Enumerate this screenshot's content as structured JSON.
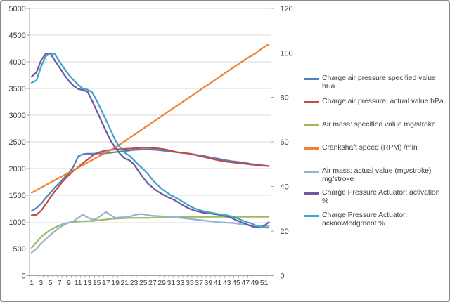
{
  "chart_data": {
    "type": "line",
    "title": "",
    "grid": true,
    "legend_position": "right",
    "x_categories": [
      1,
      2,
      3,
      4,
      5,
      6,
      7,
      8,
      9,
      10,
      11,
      12,
      13,
      14,
      15,
      16,
      17,
      18,
      19,
      20,
      21,
      22,
      23,
      24,
      25,
      26,
      27,
      28,
      29,
      30,
      31,
      32,
      33,
      34,
      35,
      36,
      37,
      38,
      39,
      40,
      41,
      42,
      43,
      44,
      45,
      46,
      47,
      48,
      49,
      50,
      51,
      52
    ],
    "x_axis": {
      "tick_labels": [
        "1",
        "3",
        "5",
        "7",
        "9",
        "11",
        "13",
        "15",
        "17",
        "19",
        "21",
        "23",
        "25",
        "27",
        "29",
        "31",
        "33",
        "35",
        "37",
        "39",
        "41",
        "43",
        "45",
        "47",
        "49",
        "51"
      ]
    },
    "left_axis": {
      "min": 0,
      "max": 5000,
      "step": 500,
      "tick_labels": [
        "0",
        "500",
        "1000",
        "1500",
        "2000",
        "2500",
        "3000",
        "3500",
        "4000",
        "4500",
        "5000"
      ]
    },
    "right_axis": {
      "min": 0,
      "max": 120,
      "step": 20,
      "tick_labels": [
        "0",
        "20",
        "40",
        "60",
        "80",
        "100",
        "120"
      ]
    },
    "series": [
      {
        "name": "Charge air pressure specified value",
        "slug": "charge-air-pressure-specified",
        "unit": "hPa",
        "legend_label": "Charge air pressure specified value  hPa",
        "axis": "left",
        "color": "#4F81BD",
        "values": [
          1210,
          1260,
          1340,
          1450,
          1550,
          1650,
          1740,
          1830,
          1920,
          2040,
          2230,
          2270,
          2280,
          2280,
          2285,
          2285,
          2290,
          2300,
          2310,
          2320,
          2330,
          2340,
          2350,
          2355,
          2360,
          2360,
          2355,
          2350,
          2340,
          2330,
          2320,
          2310,
          2300,
          2290,
          2280,
          2265,
          2250,
          2240,
          2220,
          2200,
          2190,
          2170,
          2155,
          2140,
          2130,
          2120,
          2110,
          2090,
          2080,
          2070,
          2060,
          2050
        ]
      },
      {
        "name": "Charge air pressure: actual value",
        "slug": "charge-air-pressure-actual",
        "unit": "hPa",
        "legend_label": "Charge air pressure: actual value  hPa",
        "axis": "left",
        "color": "#BE4B48",
        "values": [
          1130,
          1135,
          1210,
          1330,
          1460,
          1580,
          1690,
          1790,
          1880,
          1960,
          2030,
          2100,
          2170,
          2240,
          2290,
          2320,
          2340,
          2350,
          2360,
          2365,
          2370,
          2375,
          2380,
          2385,
          2390,
          2390,
          2385,
          2380,
          2370,
          2355,
          2335,
          2315,
          2300,
          2290,
          2280,
          2260,
          2240,
          2220,
          2200,
          2180,
          2160,
          2145,
          2130,
          2120,
          2110,
          2100,
          2090,
          2080,
          2070,
          2060,
          2055,
          2050
        ]
      },
      {
        "name": "Air mass: specified value",
        "slug": "air-mass-specified",
        "unit": "mg/stroke",
        "legend_label": "Air mass: specified value  mg/stroke",
        "axis": "left",
        "color": "#9BBB59",
        "values": [
          520,
          620,
          720,
          790,
          850,
          900,
          940,
          970,
          990,
          1005,
          1010,
          1015,
          1020,
          1020,
          1030,
          1040,
          1050,
          1060,
          1065,
          1070,
          1075,
          1080,
          1080,
          1080,
          1080,
          1080,
          1085,
          1085,
          1090,
          1090,
          1090,
          1090,
          1095,
          1095,
          1100,
          1100,
          1100,
          1100,
          1100,
          1100,
          1100,
          1100,
          1100,
          1100,
          1100,
          1100,
          1100,
          1100,
          1100,
          1100,
          1100,
          1100
        ]
      },
      {
        "name": "Crankshaft speed (RPM)",
        "slug": "crankshaft-speed",
        "unit": "/min",
        "legend_label": "Crankshaft speed (RPM)  /min",
        "axis": "left",
        "color": "#EE8336",
        "values": [
          1550,
          1597,
          1644,
          1691,
          1738,
          1785,
          1832,
          1879,
          1926,
          1973,
          2020,
          2067,
          2114,
          2161,
          2208,
          2255,
          2302,
          2349,
          2396,
          2455,
          2514,
          2573,
          2632,
          2691,
          2750,
          2809,
          2868,
          2927,
          2986,
          3045,
          3104,
          3163,
          3222,
          3281,
          3340,
          3399,
          3458,
          3517,
          3576,
          3635,
          3694,
          3753,
          3812,
          3871,
          3930,
          3989,
          4048,
          4100,
          4150,
          4215,
          4275,
          4330
        ]
      },
      {
        "name": "Air mass: actual value (mg/stroke)",
        "slug": "air-mass-actual",
        "unit": "mg/stroke",
        "legend_label": "Air mass: actual value (mg/stroke)\nmg/stroke",
        "axis": "left",
        "color": "#95B3D7",
        "values": [
          430,
          500,
          600,
          680,
          760,
          830,
          900,
          950,
          990,
          1020,
          1080,
          1140,
          1090,
          1050,
          1060,
          1130,
          1190,
          1130,
          1080,
          1090,
          1090,
          1100,
          1130,
          1150,
          1150,
          1130,
          1120,
          1115,
          1110,
          1105,
          1100,
          1090,
          1080,
          1070,
          1060,
          1050,
          1040,
          1030,
          1020,
          1010,
          1000,
          995,
          990,
          985,
          975,
          960,
          950,
          940,
          930,
          925,
          920,
          930
        ]
      },
      {
        "name": "Charge Pressure Actuator: activation",
        "slug": "actuator-activation",
        "unit": "%",
        "legend_label": "Charge Pressure Actuator: activation  %",
        "axis": "right",
        "color": "#71589E",
        "values": [
          89.3,
          91.2,
          96.5,
          99.6,
          99.8,
          96.5,
          93.4,
          90.2,
          87.4,
          85.2,
          83.8,
          83.3,
          82.6,
          78.5,
          73.9,
          69.4,
          64.8,
          60.5,
          57.4,
          54.7,
          52.6,
          51.8,
          49.9,
          46.8,
          43.9,
          41.3,
          39.6,
          37.9,
          36.7,
          35.5,
          34.6,
          33.6,
          32.2,
          31,
          30,
          29.2,
          28.7,
          28.2,
          28,
          27.7,
          27.4,
          27,
          26.6,
          25.9,
          24.8,
          24,
          23.2,
          22.4,
          21.7,
          21.5,
          22.3,
          24
        ]
      },
      {
        "name": "Charge Pressure Actuator: acknowledgment",
        "slug": "actuator-acknowledgment",
        "unit": "%",
        "legend_label": "Charge Pressure Actuator:\nacknowledgment  %",
        "axis": "right",
        "color": "#3BA7C4",
        "values": [
          86.6,
          87.6,
          93.6,
          98.4,
          99.8,
          99.4,
          96,
          93.1,
          90.2,
          87.8,
          85.7,
          84,
          83.5,
          82.3,
          78.5,
          74.2,
          69.8,
          65.3,
          60.7,
          57.6,
          55.2,
          53.8,
          51.8,
          49.7,
          47.8,
          45.6,
          43,
          40.8,
          38.9,
          37.4,
          36,
          35,
          33.8,
          32.4,
          31.2,
          30.2,
          29.5,
          28.9,
          28.4,
          28.1,
          27.7,
          27.4,
          27.1,
          26.6,
          25.9,
          25,
          24.2,
          23.6,
          22.7,
          22,
          21.6,
          21.5
        ]
      }
    ]
  },
  "legend": {
    "item_tops": [
      104,
      137,
      170,
      203,
      236,
      267,
      299
    ]
  },
  "colors": {
    "grid": "#d9d9d9",
    "axis": "#a6a6a6",
    "label": "#404040",
    "frame_border": "#898989"
  }
}
